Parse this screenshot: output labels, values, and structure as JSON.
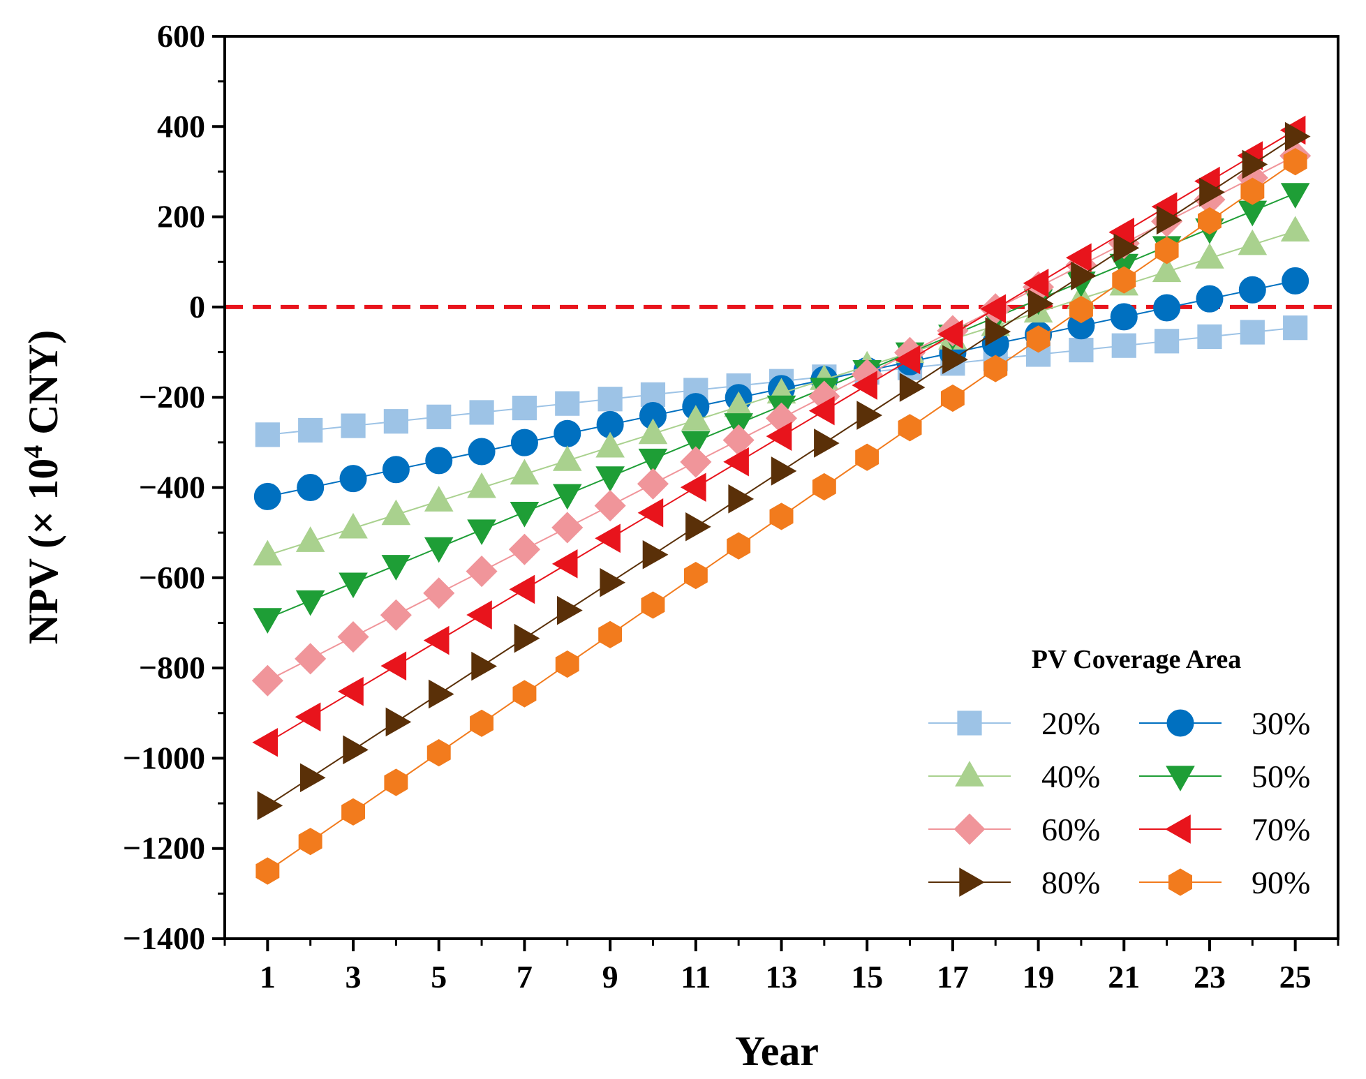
{
  "chart_data": {
    "type": "line",
    "title": "",
    "xlabel": "Year",
    "ylabel": "NPV (× 10",
    "ylabel_superscript": "4",
    "ylabel_suffix": " CNY)",
    "xlim": [
      0,
      26
    ],
    "ylim": [
      -1400,
      600
    ],
    "x_ticks": [
      1,
      3,
      5,
      7,
      9,
      11,
      13,
      15,
      17,
      19,
      21,
      23,
      25
    ],
    "y_ticks": [
      600,
      400,
      200,
      0,
      -200,
      -400,
      -600,
      -800,
      -1000,
      -1200,
      -1400
    ],
    "y_tick_labels": [
      "600",
      "400",
      "200",
      "0",
      "−200",
      "−400",
      "−600",
      "−800",
      "−1000",
      "−1200",
      "−1400"
    ],
    "reference_line": {
      "y": 0,
      "color": "#e8141c",
      "style": "dashed"
    },
    "legend_title": "PV Coverage Area",
    "legend_position": "bottom-right",
    "x": [
      1,
      2,
      3,
      4,
      5,
      6,
      7,
      8,
      9,
      10,
      11,
      12,
      13,
      14,
      15,
      16,
      17,
      18,
      19,
      20,
      21,
      22,
      23,
      24,
      25
    ],
    "series": [
      {
        "name": "20%",
        "color": "#9dc3e6",
        "marker": "square",
        "start": -283,
        "end": -46
      },
      {
        "name": "30%",
        "color": "#0070c0",
        "marker": "circle",
        "start": -420,
        "end": 58
      },
      {
        "name": "40%",
        "color": "#a9d18e",
        "marker": "triangle-up",
        "start": -550,
        "end": 168
      },
      {
        "name": "50%",
        "color": "#1e9e36",
        "marker": "triangle-down",
        "start": -690,
        "end": 252
      },
      {
        "name": "60%",
        "color": "#f0959a",
        "marker": "diamond",
        "start": -828,
        "end": 335
      },
      {
        "name": "70%",
        "color": "#e8141c",
        "marker": "triangle-left",
        "start": -965,
        "end": 392
      },
      {
        "name": "80%",
        "color": "#5a3008",
        "marker": "triangle-right",
        "start": -1105,
        "end": 378
      },
      {
        "name": "90%",
        "color": "#f27b1d",
        "marker": "hexagon",
        "start": -1250,
        "end": 322
      }
    ]
  }
}
